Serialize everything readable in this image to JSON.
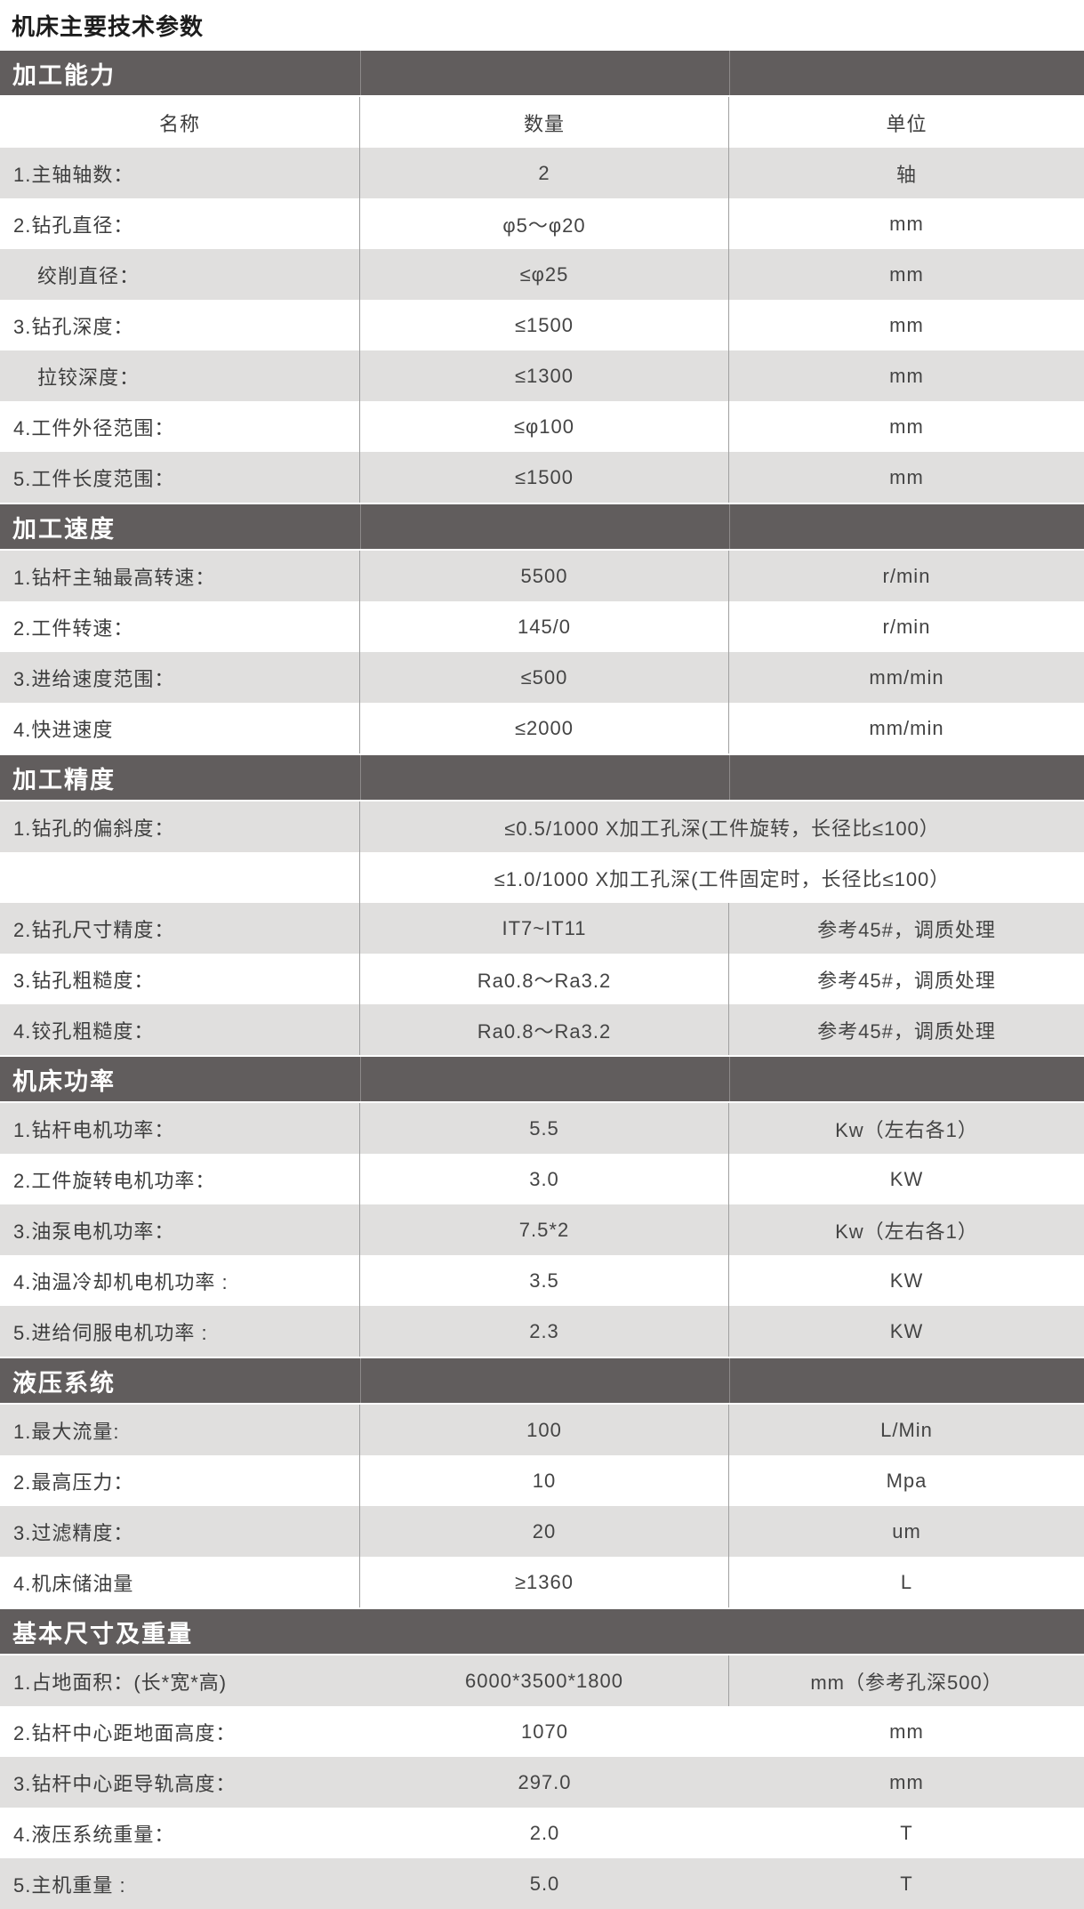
{
  "title": "机床主要技术参数",
  "colors": {
    "section_bar_bg": "#615d5d",
    "section_bar_text": "#ffffff",
    "row_stripe_bg": "#e0dfde",
    "row_white_bg": "#ffffff",
    "divider": "#a0a0a0",
    "text": "#3d3d3d"
  },
  "table": {
    "columns": [
      "名称",
      "数量",
      "单位"
    ],
    "sections": [
      {
        "header": "加工能力",
        "show_column_header": true,
        "rows": [
          {
            "label": "1.主轴轴数：",
            "value": "2",
            "unit": "轴"
          },
          {
            "label": "2.钻孔直径：",
            "value": "φ5～φ20",
            "unit": "mm"
          },
          {
            "label": "绞削直径：",
            "indent": true,
            "value": "≤φ25",
            "unit": "mm"
          },
          {
            "label": "3.钻孔深度：",
            "value": "≤1500",
            "unit": "mm"
          },
          {
            "label": "拉铰深度：",
            "indent": true,
            "value": "≤1300",
            "unit": "mm"
          },
          {
            "label": "4.工件外径范围：",
            "value": "≤φ100",
            "unit": "mm"
          },
          {
            "label": "5.工件长度范围：",
            "value": "≤1500",
            "unit": "mm"
          }
        ]
      },
      {
        "header": "加工速度",
        "rows": [
          {
            "label": "1.钻杆主轴最高转速：",
            "value": "5500",
            "unit": "r/min"
          },
          {
            "label": "2.工件转速：",
            "value": "145/0",
            "unit": "r/min"
          },
          {
            "label": "3.进给速度范围：",
            "value": "≤500",
            "unit": "mm/min"
          },
          {
            "label": "4.快进速度",
            "value": "≤2000",
            "unit": "mm/min"
          }
        ]
      },
      {
        "header": "加工精度",
        "rows": [
          {
            "label": "1.钻孔的偏斜度：",
            "value": "≤0.5/1000  X加工孔深(工件旋转，长径比≤100）",
            "span": true
          },
          {
            "label": "",
            "value": "≤1.0/1000  X加工孔深(工件固定时，长径比≤100）",
            "span": true
          },
          {
            "label": "2.钻孔尺寸精度：",
            "value": "IT7~IT11",
            "unit": "参考45#，调质处理"
          },
          {
            "label": "3.钻孔粗糙度：",
            "value": "Ra0.8～Ra3.2",
            "unit": "参考45#，调质处理"
          },
          {
            "label": "4.铰孔粗糙度：",
            "value": "Ra0.8～Ra3.2",
            "unit": "参考45#，调质处理"
          }
        ]
      },
      {
        "header": "机床功率",
        "rows": [
          {
            "label": "1.钻杆电机功率：",
            "value": "5.5",
            "unit": "Kw（左右各1）"
          },
          {
            "label": "2.工件旋转电机功率：",
            "value": "3.0",
            "unit": "KW"
          },
          {
            "label": "3.油泵电机功率：",
            "value": "7.5*2",
            "unit": "Kw（左右各1）"
          },
          {
            "label": "4.油温冷却机电机功率 :",
            "value": "3.5",
            "unit": "KW"
          },
          {
            "label": "5.进给伺服电机功率 :",
            "value": "2.3",
            "unit": "KW"
          }
        ]
      },
      {
        "header": "液压系统",
        "rows": [
          {
            "label": "1.最大流量:",
            "value": "100",
            "unit": "L/Min"
          },
          {
            "label": "2.最高压力：",
            "value": "10",
            "unit": "Mpa"
          },
          {
            "label": "3.过滤精度：",
            "value": "20",
            "unit": "um"
          },
          {
            "label": "4.机床储油量",
            "value": "≥1360",
            "unit": "L"
          }
        ]
      },
      {
        "header": "基本尺寸及重量",
        "no_dividers": true,
        "rows": [
          {
            "label": "1.占地面积：(长*宽*高)",
            "value": "6000*3500*1800",
            "unit": "mm（参考孔深500）",
            "divider": true
          },
          {
            "label": "2.钻杆中心距地面高度：",
            "value": "1070",
            "unit": "mm"
          },
          {
            "label": "3.钻杆中心距导轨高度：",
            "value": "297.0",
            "unit": "mm"
          },
          {
            "label": "4.液压系统重量：",
            "value": "2.0",
            "unit": "T"
          },
          {
            "label": "5.主机重量 :",
            "value": "5.0",
            "unit": "T"
          }
        ]
      }
    ]
  }
}
